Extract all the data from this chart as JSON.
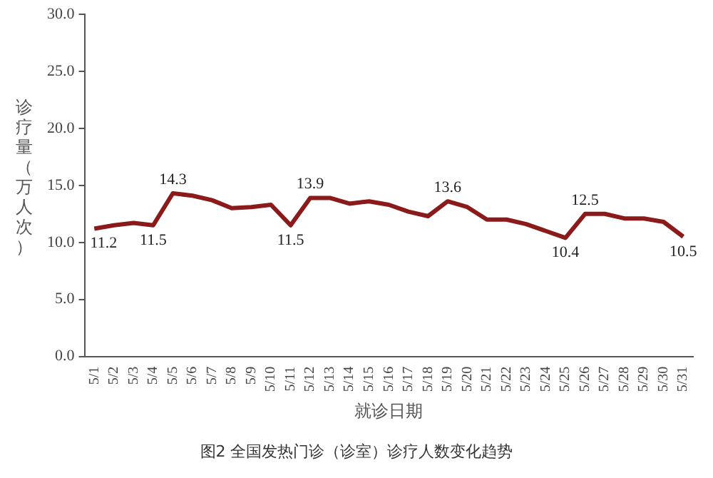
{
  "chart_data": {
    "type": "line",
    "xlabel": "就诊日期",
    "ylabel": "诊疗量（万人次）",
    "annotations": [
      "图2 全国发热门诊（诊室）诊疗人数变化趋势"
    ],
    "categories": [
      "5/1",
      "5/2",
      "5/3",
      "5/4",
      "5/5",
      "5/6",
      "5/7",
      "5/8",
      "5/9",
      "5/10",
      "5/11",
      "5/12",
      "5/13",
      "5/14",
      "5/15",
      "5/16",
      "5/17",
      "5/18",
      "5/19",
      "5/20",
      "5/21",
      "5/22",
      "5/23",
      "5/24",
      "5/25",
      "5/26",
      "5/27",
      "5/28",
      "5/29",
      "5/30",
      "5/31"
    ],
    "series": [
      {
        "color": "#8b1a1a",
        "values": [
          11.2,
          11.5,
          11.7,
          11.5,
          14.3,
          14.1,
          13.7,
          13.0,
          13.1,
          13.3,
          11.5,
          13.9,
          13.9,
          13.4,
          13.6,
          13.3,
          12.7,
          12.3,
          13.6,
          13.1,
          12.0,
          12.0,
          11.6,
          11.0,
          10.4,
          12.5,
          12.5,
          12.1,
          12.1,
          11.8,
          10.5
        ],
        "value_labels": [
          "11.2",
          null,
          null,
          "11.5",
          "14.3",
          null,
          null,
          null,
          null,
          null,
          "11.5",
          "13.9",
          null,
          null,
          null,
          null,
          null,
          null,
          "13.6",
          null,
          null,
          null,
          null,
          null,
          "10.4",
          "12.5",
          null,
          null,
          null,
          null,
          "10.5"
        ]
      }
    ],
    "ylim": [
      0,
      30
    ],
    "yticks": [
      {
        "value": 0,
        "label": "0.0"
      },
      {
        "value": 5,
        "label": "5.0"
      },
      {
        "value": 10,
        "label": "10.0"
      },
      {
        "value": 15,
        "label": "15.0"
      },
      {
        "value": 20,
        "label": "20.0"
      },
      {
        "value": 25,
        "label": "25.0"
      },
      {
        "value": 30,
        "label": "30.0"
      }
    ],
    "grid": false,
    "legend": false,
    "marker": "none",
    "line_style": "solid"
  }
}
